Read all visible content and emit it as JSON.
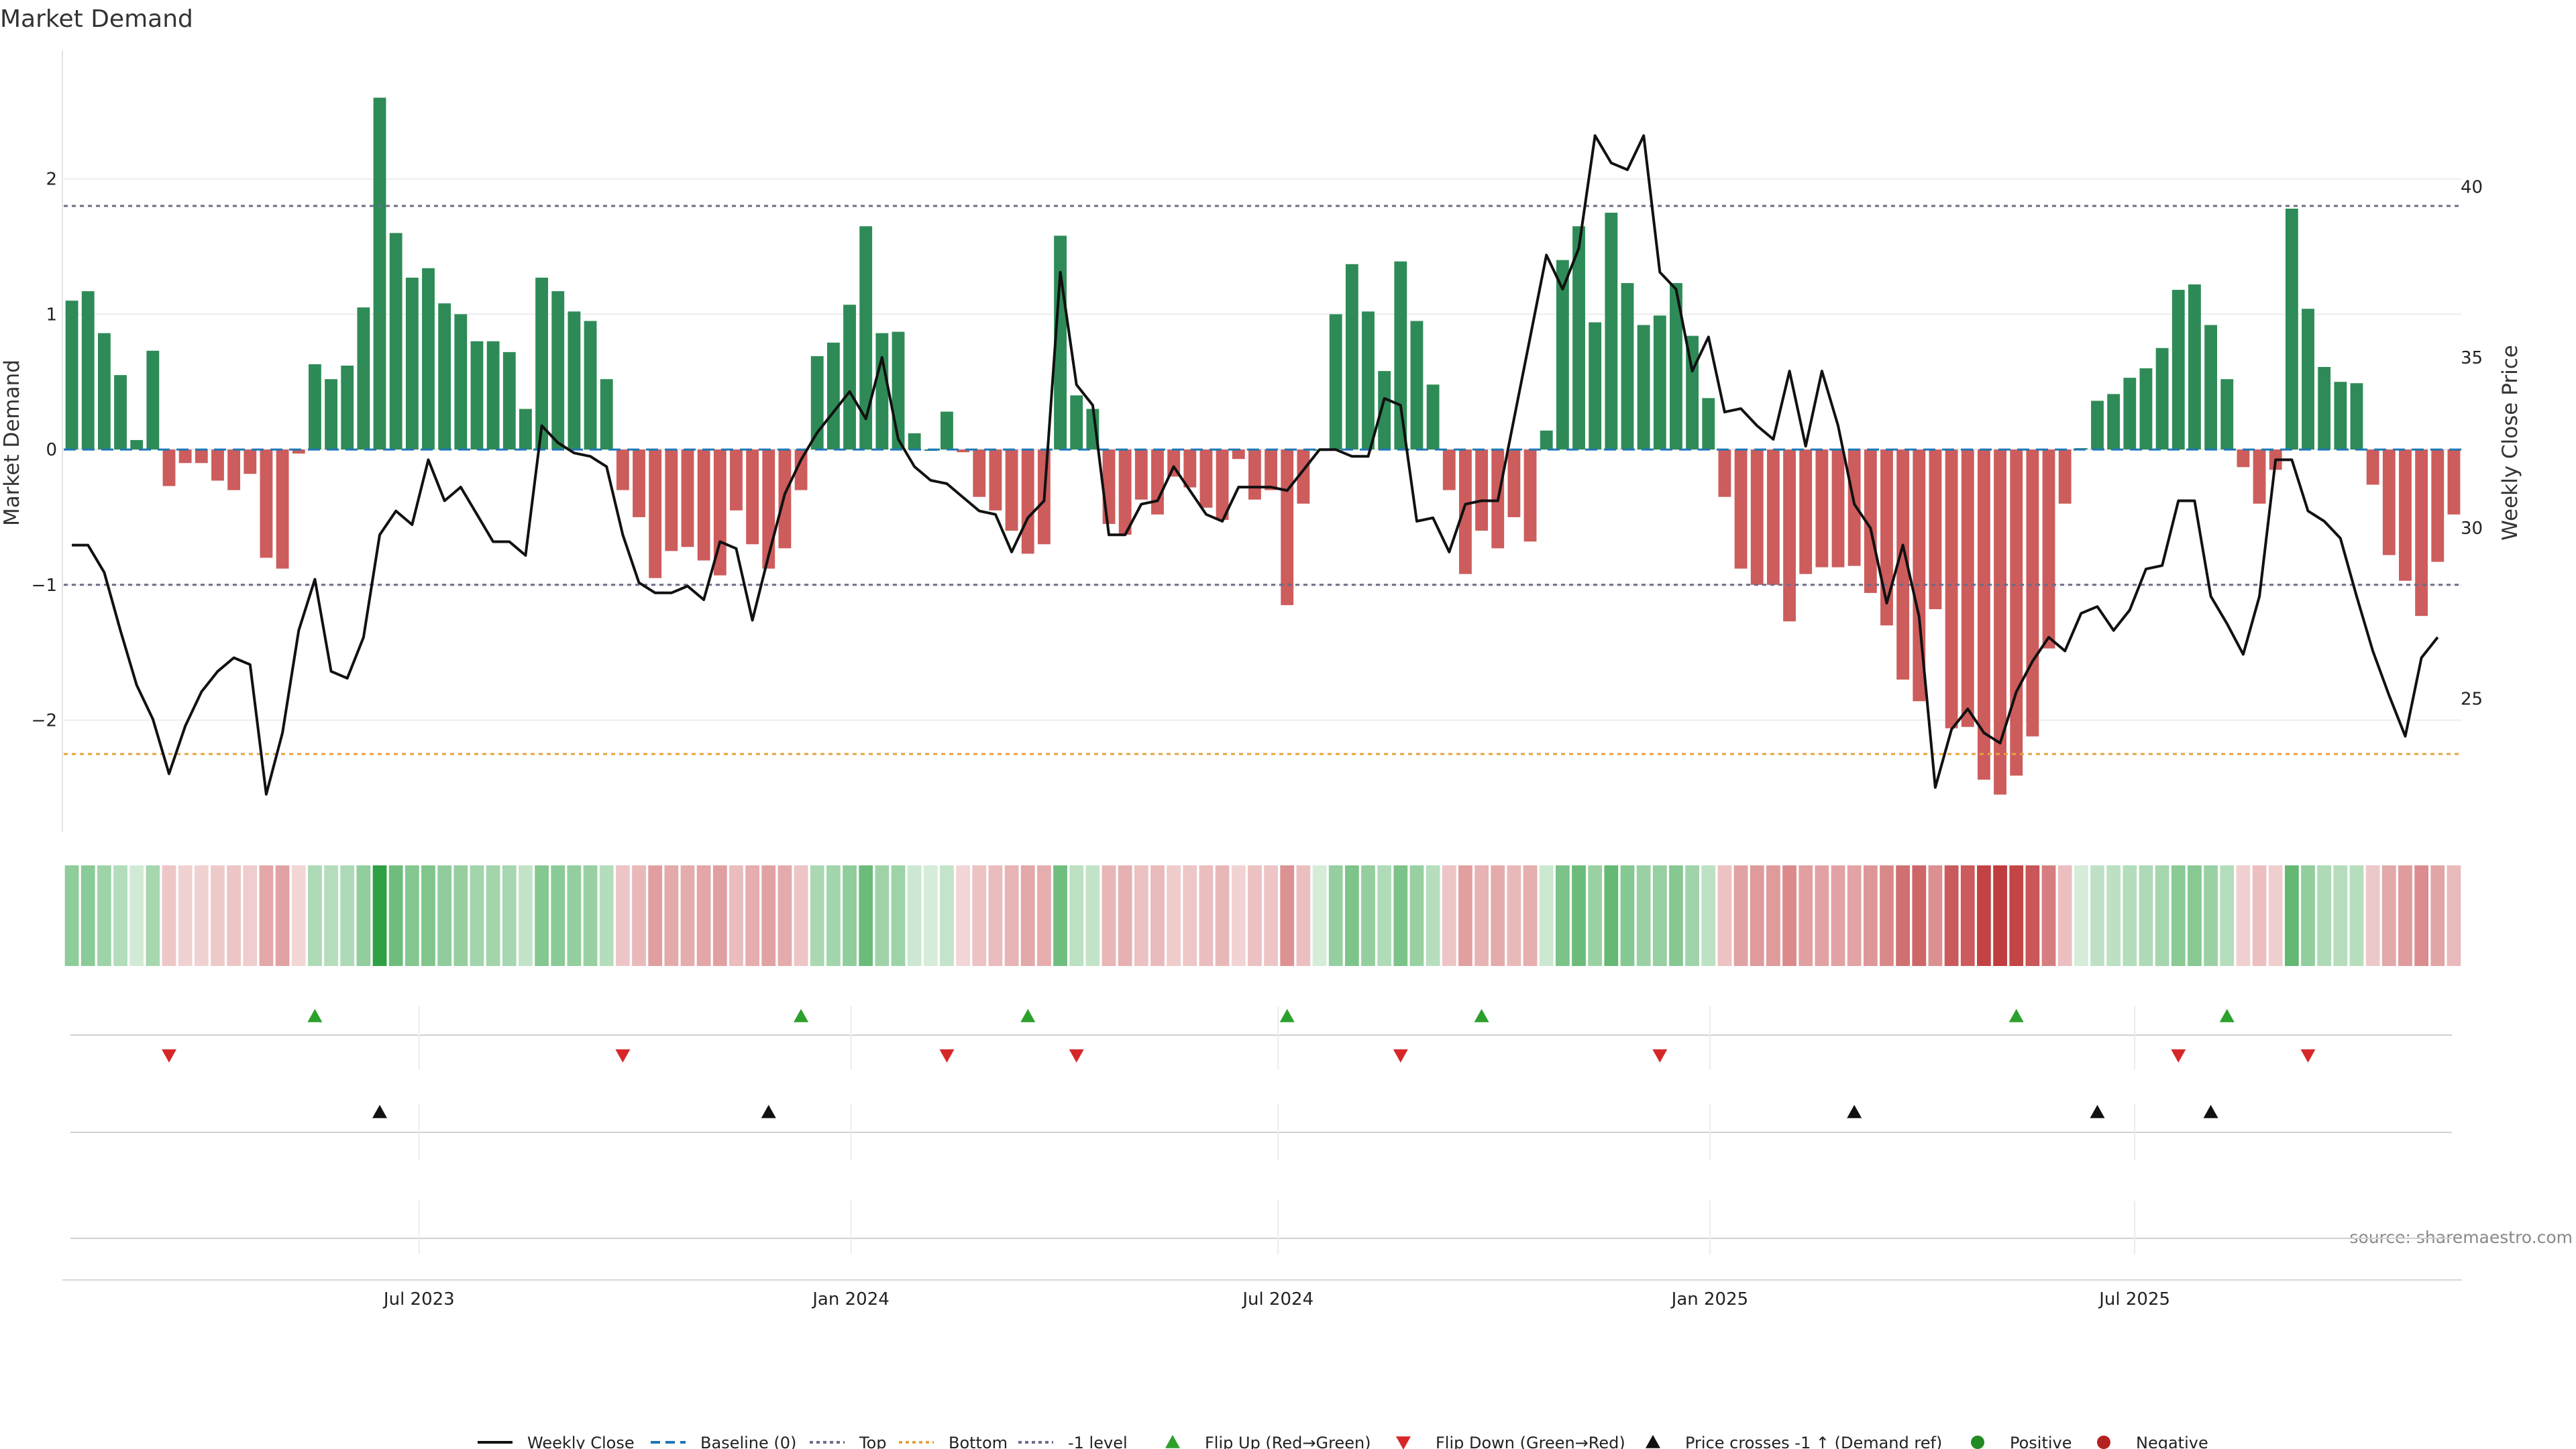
{
  "chart_data": {
    "type": "bar",
    "title": "Market Demand",
    "ylabel_left": "Market Demand",
    "ylabel_right": "Weekly Close Price",
    "ylim_left": [
      -2.85,
      2.95
    ],
    "ylim_right": [
      21.0,
      44.0
    ],
    "yticks_left": [
      2,
      1,
      0,
      -1,
      -2
    ],
    "ytick_labels_left": [
      "2",
      "1",
      "0",
      "−1",
      "−2"
    ],
    "yticks_right": [
      40,
      35,
      30,
      25
    ],
    "ytick_labels_right": [
      "40",
      "35",
      "30",
      "25"
    ],
    "reference_lines": [
      {
        "name": "Top",
        "value": 1.8
      },
      {
        "name": "-1 level",
        "value": -1.0
      },
      {
        "name": "Bottom",
        "value": -2.25
      }
    ],
    "demand_values": [
      1.1,
      1.17,
      0.86,
      0.55,
      0.07,
      0.73,
      -0.27,
      -0.1,
      -0.1,
      -0.23,
      -0.3,
      -0.18,
      -0.8,
      -0.88,
      -0.03,
      0.63,
      0.52,
      0.62,
      1.05,
      2.6,
      1.6,
      1.27,
      1.34,
      1.08,
      1.0,
      0.8,
      0.8,
      0.72,
      0.3,
      1.27,
      1.17,
      1.02,
      0.95,
      0.52,
      -0.3,
      -0.5,
      -0.95,
      -0.75,
      -0.72,
      -0.82,
      -0.93,
      -0.45,
      -0.7,
      -0.88,
      -0.73,
      -0.3,
      0.69,
      0.79,
      1.07,
      1.65,
      0.86,
      0.87,
      0.12,
      0.0,
      0.28,
      -0.02,
      -0.35,
      -0.45,
      -0.6,
      -0.77,
      -0.7,
      1.58,
      0.4,
      0.3,
      -0.55,
      -0.63,
      -0.37,
      -0.48,
      -0.2,
      -0.28,
      -0.43,
      -0.52,
      -0.07,
      -0.37,
      -0.3,
      -1.15,
      -0.4,
      0.0,
      1.0,
      1.37,
      1.02,
      0.58,
      1.39,
      0.95,
      0.48,
      -0.3,
      -0.92,
      -0.6,
      -0.73,
      -0.5,
      -0.68,
      0.14,
      1.4,
      1.65,
      0.94,
      1.75,
      1.23,
      0.92,
      0.99,
      1.23,
      0.84,
      0.38,
      -0.35,
      -0.88,
      -1.0,
      -1.0,
      -1.27,
      -0.92,
      -0.87,
      -0.87,
      -0.86,
      -1.06,
      -1.3,
      -1.7,
      -1.86,
      -1.18,
      -2.06,
      -2.05,
      -2.44,
      -2.55,
      -2.41,
      -2.12,
      -1.47,
      -0.4,
      0.01,
      0.36,
      0.41,
      0.53,
      0.6,
      0.75,
      1.18,
      1.22,
      0.92,
      0.52,
      -0.13,
      -0.4,
      -0.15,
      1.78,
      1.04,
      0.61,
      0.5,
      0.49,
      -0.26,
      -0.78,
      -0.97,
      -1.23,
      -0.83,
      -0.48
    ],
    "weekly_close": [
      29.5,
      29.5,
      28.7,
      27.0,
      25.4,
      24.4,
      22.8,
      24.2,
      25.2,
      25.8,
      26.2,
      26.0,
      22.2,
      24.0,
      27.0,
      28.5,
      25.8,
      25.6,
      26.8,
      29.8,
      30.5,
      30.1,
      32.0,
      30.8,
      31.2,
      30.4,
      29.6,
      29.6,
      29.2,
      33.0,
      32.5,
      32.2,
      32.1,
      31.8,
      29.8,
      28.4,
      28.1,
      28.1,
      28.3,
      27.9,
      29.6,
      29.4,
      27.3,
      29.2,
      31.0,
      32.0,
      32.8,
      33.4,
      34.0,
      33.2,
      35.0,
      32.6,
      31.8,
      31.4,
      31.3,
      30.9,
      30.5,
      30.4,
      29.3,
      30.3,
      30.8,
      37.5,
      34.2,
      33.6,
      29.8,
      29.8,
      30.7,
      30.8,
      31.8,
      31.1,
      30.4,
      30.2,
      31.2,
      31.2,
      31.2,
      31.1,
      31.7,
      32.3,
      32.3,
      32.1,
      32.1,
      33.8,
      33.6,
      30.2,
      30.3,
      29.3,
      30.7,
      30.8,
      30.8,
      33.2,
      35.6,
      38.0,
      37.0,
      38.2,
      41.5,
      40.7,
      40.5,
      41.5,
      37.5,
      37.0,
      34.6,
      35.6,
      33.4,
      33.5,
      33.0,
      32.6,
      34.6,
      32.4,
      34.6,
      33.0,
      30.7,
      30.0,
      27.8,
      29.5,
      27.4,
      22.4,
      24.1,
      24.7,
      24.0,
      23.7,
      25.2,
      26.1,
      26.8,
      26.4,
      27.5,
      27.7,
      27.0,
      27.6,
      28.8,
      28.9,
      30.8,
      30.8,
      28.0,
      27.2,
      26.3,
      28.0,
      32.0,
      32.0,
      30.5,
      30.2,
      29.7,
      28.0,
      26.4,
      25.1,
      23.9,
      26.2,
      26.8
    ],
    "time_axis": {
      "first_week": "2023-02-03",
      "last_week": "2025-11-14",
      "ticks": [
        {
          "date": "2023-07-01",
          "label": "Jul 2023"
        },
        {
          "date": "2024-01-01",
          "label": "Jan 2024"
        },
        {
          "date": "2024-07-01",
          "label": "Jul 2024"
        },
        {
          "date": "2025-01-01",
          "label": "Jan 2025"
        },
        {
          "date": "2025-07-01",
          "label": "Jul 2025"
        }
      ]
    },
    "flip_up_weeks": [
      15,
      45,
      59,
      75,
      87,
      120,
      133
    ],
    "flip_down_weeks": [
      6,
      34,
      54,
      62,
      82,
      98,
      130,
      138
    ],
    "price_cross_weeks": [
      19,
      43,
      110,
      125,
      132
    ],
    "legend": [
      "Weekly Close",
      "Baseline (0)",
      "Top",
      "Bottom",
      "-1 level",
      "Flip Up (Red→Green)",
      "Flip Down (Green→Red)",
      "Price crosses -1 ↑ (Demand ref)",
      "Positive",
      "Negative"
    ],
    "annotations": [
      "source: sharemaestro.com"
    ]
  },
  "colors": {
    "positive": "#2e8b57",
    "negative": "#cd5c5c",
    "line": "#111111",
    "top_line": "#6b6b8a",
    "bottom_line": "#e6a23c",
    "flip_up": "#2ca02c",
    "flip_down": "#d62728",
    "cross": "#111111",
    "positive_dot": "#228b22",
    "negative_dot": "#b22222"
  }
}
